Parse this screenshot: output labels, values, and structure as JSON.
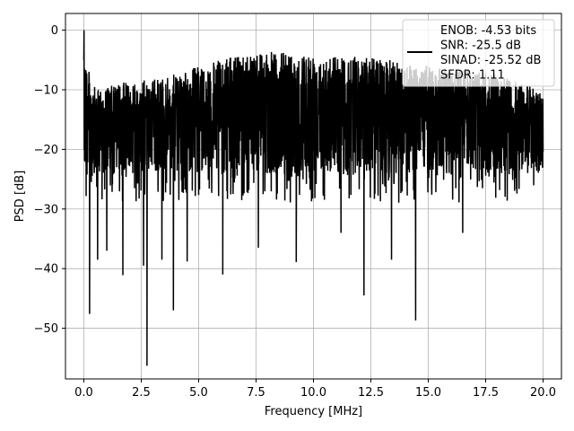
{
  "chart_data": {
    "type": "line",
    "title": "",
    "xlabel": "Frequency [MHz]",
    "ylabel": "PSD [dB]",
    "xlim": [
      -0.8,
      20.8
    ],
    "ylim": [
      -58.5,
      2.8
    ],
    "x_ticks": [
      0.0,
      2.5,
      5.0,
      7.5,
      10.0,
      12.5,
      15.0,
      17.5,
      20.0
    ],
    "x_tick_labels": [
      "0.0",
      "2.5",
      "5.0",
      "7.5",
      "10.0",
      "12.5",
      "15.0",
      "17.5",
      "20.0"
    ],
    "y_ticks": [
      0,
      -10,
      -20,
      -30,
      -40,
      -50
    ],
    "y_tick_labels": [
      "0",
      "−10",
      "−20",
      "−30",
      "−40",
      "−50"
    ],
    "grid": true,
    "legend_position": "top-right",
    "series": [
      {
        "name": "ENOB: -4.53 bits\nSNR: -25.5 dB\nSINAD: -25.52 dB\nSFDR: 1.11",
        "color": "#000000",
        "x_range": [
          0.0,
          20.0
        ],
        "typical_range_db": [
          -27,
          -8
        ],
        "peak_value_db": 0.0,
        "envelope_top": {
          "x": [
            0.0,
            0.1,
            0.4,
            1.0,
            2.0,
            3.5,
            5.0,
            7.5,
            10.0,
            12.5,
            15.0,
            17.5,
            20.0
          ],
          "y": [
            0.0,
            -5.0,
            -9.5,
            -9.5,
            -8.5,
            -8.0,
            -6.0,
            -3.5,
            -4.0,
            -4.5,
            -6.0,
            -7.0,
            -10.0
          ]
        },
        "notable_dips": [
          {
            "x": 0.25,
            "y": -47.6
          },
          {
            "x": 0.6,
            "y": -38.5
          },
          {
            "x": 1.0,
            "y": -37.0
          },
          {
            "x": 1.7,
            "y": -41.1
          },
          {
            "x": 2.6,
            "y": -39.5
          },
          {
            "x": 2.75,
            "y": -56.3
          },
          {
            "x": 3.4,
            "y": -38.5
          },
          {
            "x": 3.9,
            "y": -47.0
          },
          {
            "x": 4.5,
            "y": -38.8
          },
          {
            "x": 6.05,
            "y": -41.0
          },
          {
            "x": 7.6,
            "y": -36.5
          },
          {
            "x": 9.25,
            "y": -38.9
          },
          {
            "x": 11.2,
            "y": -34.0
          },
          {
            "x": 12.2,
            "y": -44.5
          },
          {
            "x": 13.4,
            "y": -38.5
          },
          {
            "x": 14.45,
            "y": -48.7
          },
          {
            "x": 16.5,
            "y": -34.0
          }
        ]
      }
    ]
  }
}
